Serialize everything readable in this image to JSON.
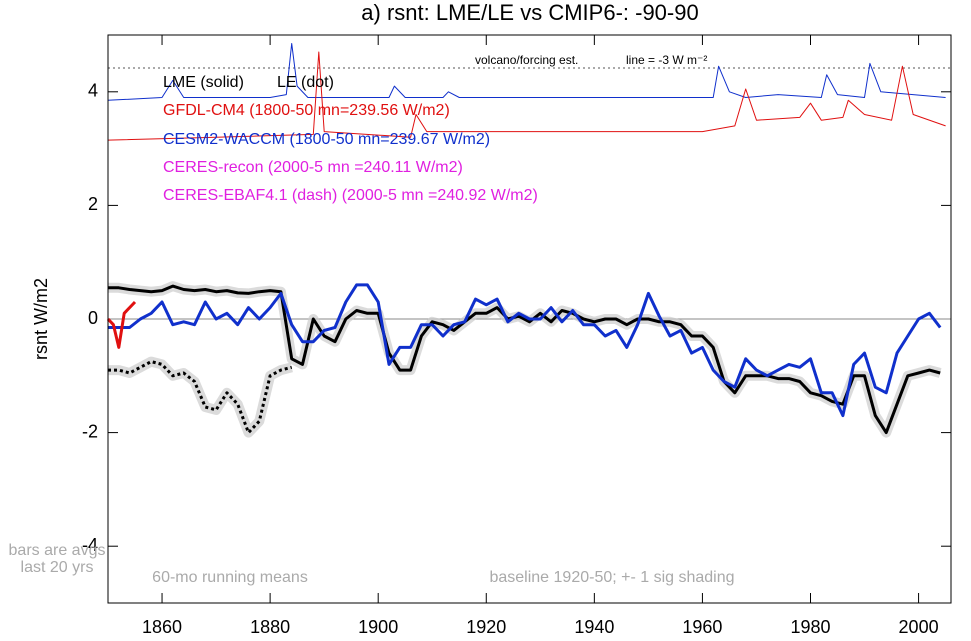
{
  "chart_data": {
    "type": "line",
    "title": "a) rsnt: LME/LE vs CMIP6-: -90-90",
    "ylabel": "rsnt W/m2",
    "xlim": [
      1850,
      2006
    ],
    "ylim": [
      -5,
      5
    ],
    "xticks": [
      1860,
      1880,
      1900,
      1920,
      1940,
      1960,
      1980,
      2000
    ],
    "yticks": [
      -4,
      -2,
      0,
      2,
      4
    ],
    "zero_line": true,
    "reference_line": 4.42,
    "x": [
      1850,
      1852,
      1854,
      1856,
      1858,
      1860,
      1862,
      1864,
      1866,
      1868,
      1870,
      1872,
      1874,
      1876,
      1878,
      1880,
      1882,
      1884,
      1886,
      1888,
      1890,
      1892,
      1894,
      1896,
      1898,
      1900,
      1902,
      1904,
      1906,
      1908,
      1910,
      1912,
      1914,
      1916,
      1918,
      1920,
      1922,
      1924,
      1926,
      1928,
      1930,
      1932,
      1934,
      1936,
      1938,
      1940,
      1942,
      1944,
      1946,
      1948,
      1950,
      1952,
      1954,
      1956,
      1958,
      1960,
      1962,
      1964,
      1966,
      1968,
      1970,
      1972,
      1974,
      1976,
      1978,
      1980,
      1982,
      1984,
      1986,
      1988,
      1990,
      1992,
      1994,
      1996,
      1998,
      2000,
      2002,
      2004
    ],
    "series": [
      {
        "name": "LME (solid)",
        "color": "#000000",
        "dash": "solid",
        "shading": true,
        "values": [
          0.55,
          0.55,
          0.52,
          0.5,
          0.48,
          0.5,
          0.58,
          0.52,
          0.5,
          0.52,
          0.48,
          0.5,
          0.46,
          0.45,
          0.48,
          0.5,
          0.48,
          -0.7,
          -0.8,
          0.0,
          -0.3,
          -0.4,
          0.0,
          0.15,
          0.1,
          0.1,
          -0.6,
          -0.9,
          -0.9,
          -0.3,
          -0.05,
          -0.1,
          -0.2,
          -0.05,
          0.1,
          0.1,
          0.2,
          0.0,
          0.05,
          -0.05,
          0.1,
          -0.05,
          0.15,
          0.1,
          0.0,
          -0.05,
          0.0,
          0.0,
          -0.1,
          0.0,
          0.0,
          -0.05,
          -0.05,
          -0.1,
          -0.3,
          -0.3,
          -0.5,
          -1.1,
          -1.3,
          -1.0,
          -1.0,
          -1.0,
          -1.05,
          -1.05,
          -1.1,
          -1.3,
          -1.35,
          -1.45,
          -1.5,
          -1.0,
          -1.0,
          -1.7,
          -2.0,
          -1.5,
          -1.0,
          -0.95,
          -0.9,
          -0.95
        ]
      },
      {
        "name": "LE (dot)",
        "color": "#000000",
        "dash": "dot",
        "shading": true,
        "x": [
          1850,
          1852,
          1854,
          1856,
          1858,
          1860,
          1862,
          1864,
          1866,
          1868,
          1870,
          1872,
          1874,
          1876,
          1878,
          1880,
          1882,
          1884
        ],
        "values": [
          -0.9,
          -0.9,
          -0.95,
          -0.85,
          -0.75,
          -0.8,
          -1.0,
          -0.95,
          -1.1,
          -1.55,
          -1.6,
          -1.3,
          -1.5,
          -2.0,
          -1.8,
          -1.0,
          -0.9,
          -0.85
        ]
      },
      {
        "name": "CESM2-WACCM (1800-50 mn=239.67 W/m2)",
        "color": "#1030cc",
        "dash": "solid",
        "values": [
          -0.15,
          -0.15,
          -0.15,
          0.0,
          0.1,
          0.3,
          -0.1,
          -0.05,
          -0.1,
          0.3,
          0.0,
          0.1,
          -0.1,
          0.2,
          0.0,
          0.2,
          0.45,
          -0.1,
          -0.4,
          -0.4,
          -0.2,
          -0.15,
          0.3,
          0.6,
          0.6,
          0.3,
          -0.8,
          -0.5,
          -0.5,
          -0.1,
          -0.1,
          -0.3,
          -0.1,
          -0.05,
          0.35,
          0.25,
          0.35,
          -0.05,
          0.1,
          0.0,
          0.0,
          0.2,
          -0.05,
          0.15,
          -0.1,
          -0.1,
          -0.3,
          -0.2,
          -0.5,
          -0.1,
          0.45,
          0.05,
          -0.3,
          -0.2,
          -0.6,
          -0.5,
          -0.9,
          -1.1,
          -1.2,
          -0.7,
          -0.9,
          -1.0,
          -0.9,
          -0.8,
          -0.85,
          -0.7,
          -1.3,
          -1.3,
          -1.7,
          -0.8,
          -0.6,
          -1.2,
          -1.3,
          -0.6,
          -0.3,
          0.0,
          0.1,
          -0.15
        ]
      },
      {
        "name": "GFDL-CM4 (1800-50 mn=239.56 W/m2)",
        "color": "#e01010",
        "dash": "solid",
        "x": [
          1850,
          1851,
          1852,
          1853,
          1854,
          1855
        ],
        "values": [
          0.0,
          -0.1,
          -0.5,
          0.1,
          0.2,
          0.3
        ]
      },
      {
        "color": "#1030cc",
        "dash": "thin",
        "x": [
          1850,
          1860,
          1862,
          1864,
          1880,
          1883,
          1884,
          1885,
          1887,
          1902,
          1903,
          1905,
          1912,
          1913,
          1915,
          1962,
          1963,
          1965,
          1968,
          1974,
          1982,
          1983,
          1985,
          1990,
          1991,
          1993,
          2005
        ],
        "values": [
          3.85,
          3.9,
          4.2,
          3.9,
          3.9,
          3.95,
          4.85,
          4.1,
          3.9,
          3.9,
          4.1,
          3.9,
          3.9,
          4.0,
          3.9,
          3.9,
          4.45,
          4.0,
          3.9,
          3.95,
          3.9,
          4.3,
          3.95,
          3.9,
          4.5,
          4.0,
          3.9
        ]
      },
      {
        "color": "#e01010",
        "dash": "thin",
        "x": [
          1850,
          1870,
          1888,
          1889,
          1890,
          1906,
          1907,
          1909,
          1930,
          1960,
          1966,
          1968,
          1970,
          1978,
          1980,
          1982,
          1986,
          1987,
          1990,
          1995,
          1997,
          1999,
          2005
        ],
        "values": [
          3.15,
          3.2,
          3.25,
          4.7,
          3.3,
          3.2,
          3.6,
          3.3,
          3.3,
          3.3,
          3.4,
          4.05,
          3.5,
          3.55,
          3.8,
          3.5,
          3.55,
          3.85,
          3.6,
          3.5,
          4.45,
          3.6,
          3.4
        ]
      }
    ],
    "annotations": [
      {
        "text": "CERES-recon (2000-5 mn =240.11 W/m2)",
        "color": "#e020e0"
      },
      {
        "text": "CERES-EBAF4.1 (dash) (2000-5 mn =240.92 W/m2)",
        "color": "#e020e0"
      },
      {
        "text": "volcano/forcing est.",
        "color": "#000000"
      },
      {
        "text": "line = -3 W m⁻²",
        "color": "#000000"
      },
      {
        "text": "bars are avgs",
        "color": "#aaaaaa"
      },
      {
        "text": "last 20 yrs",
        "color": "#aaaaaa"
      },
      {
        "text": "60-mo running means",
        "color": "#aaaaaa"
      },
      {
        "text": "baseline 1920-50; +- 1 sig shading",
        "color": "#aaaaaa"
      }
    ]
  }
}
